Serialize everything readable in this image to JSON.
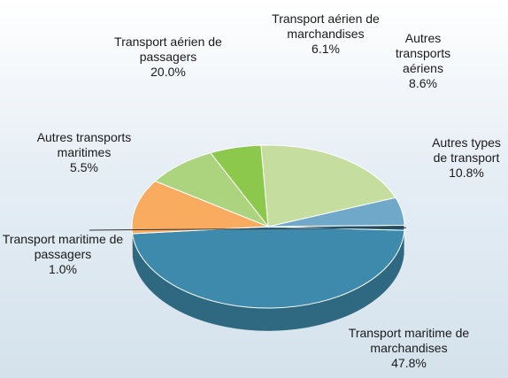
{
  "chart_data": {
    "type": "pie",
    "categories": [
      "Transport maritime de marchandises",
      "Transport maritime de passagers",
      "Autres transports maritimes",
      "Transport aérien de passagers",
      "Transport aérien de marchandises",
      "Autres transports aériens",
      "Autres types de transport"
    ],
    "values": [
      47.8,
      1.0,
      5.5,
      20.0,
      6.1,
      8.6,
      10.8
    ],
    "value_labels": [
      "47.8%",
      "1.0%",
      "5.5%",
      "20.0%",
      "6.1%",
      "8.6%",
      "10.8%"
    ],
    "colors": [
      "#3d8aac",
      "#1e5f7e",
      "#6fa8c8",
      "#c5dea0",
      "#8cc84c",
      "#acd47e",
      "#f9ac60"
    ]
  }
}
